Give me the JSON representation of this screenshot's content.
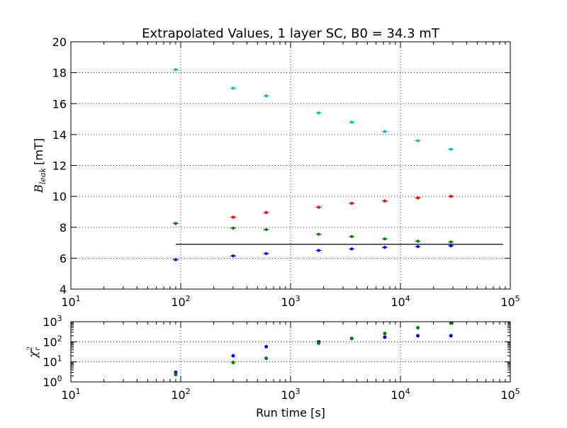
{
  "chart_data": [
    {
      "type": "scatter",
      "title": "Extrapolated Values, 1 layer SC, B0 = 34.3 mT",
      "xlabel": "",
      "ylabel": "B_leak [mT]",
      "ylabel_main": "B",
      "ylabel_sub": "leak",
      "ylabel_unit": "[mT]",
      "xscale": "log",
      "xlim": [
        10,
        100000
      ],
      "ylim": [
        4,
        20
      ],
      "x_ticks": [
        10,
        100,
        1000,
        10000,
        100000
      ],
      "x_tick_exponents": [
        "1",
        "2",
        "3",
        "4",
        "5"
      ],
      "y_ticks": [
        "4",
        "6",
        "8",
        "10",
        "12",
        "14",
        "16",
        "18",
        "20"
      ],
      "grid": true,
      "x": [
        90,
        300,
        600,
        1800,
        3600,
        7200,
        14400,
        28800
      ],
      "series": [
        {
          "color": "#00bfbf",
          "values": [
            18.2,
            17.0,
            16.5,
            15.4,
            14.8,
            14.2,
            13.6,
            13.05
          ]
        },
        {
          "color": "#ff0000",
          "values": [
            8.25,
            8.65,
            8.95,
            9.3,
            9.55,
            9.7,
            9.9,
            10.0
          ]
        },
        {
          "color": "#008000",
          "values": [
            8.25,
            7.95,
            7.85,
            7.55,
            7.4,
            7.25,
            7.1,
            7.05
          ]
        },
        {
          "color": "#0000ff",
          "values": [
            5.9,
            6.15,
            6.3,
            6.5,
            6.6,
            6.7,
            6.75,
            6.8
          ]
        }
      ],
      "reference_line": {
        "x_start": 90,
        "x_end": 86000,
        "y": 6.9,
        "color": "#000000"
      }
    },
    {
      "type": "scatter",
      "xlabel": "Run time [s]",
      "ylabel": "χ_r^2",
      "ylabel_main": "χ",
      "ylabel_sub": "r",
      "ylabel_sup": "2",
      "xscale": "log",
      "yscale": "log",
      "xlim": [
        10,
        100000
      ],
      "ylim": [
        1,
        1000
      ],
      "x_ticks": [
        10,
        100,
        1000,
        10000,
        100000
      ],
      "x_tick_exponents": [
        "1",
        "2",
        "3",
        "4",
        "5"
      ],
      "y_ticks": [
        1,
        10,
        100,
        1000
      ],
      "y_tick_exponents": [
        "0",
        "1",
        "2",
        "3"
      ],
      "grid": true,
      "x": [
        90,
        300,
        600,
        1800,
        3600,
        7200,
        14400,
        28800
      ],
      "series": [
        {
          "color": "#0000ff",
          "values": [
            3.0,
            20,
            57,
            100,
            145,
            170,
            200,
            200
          ]
        },
        {
          "color": "#008000",
          "values": [
            2.3,
            9.3,
            15,
            85,
            145,
            260,
            500,
            850
          ]
        }
      ]
    }
  ]
}
